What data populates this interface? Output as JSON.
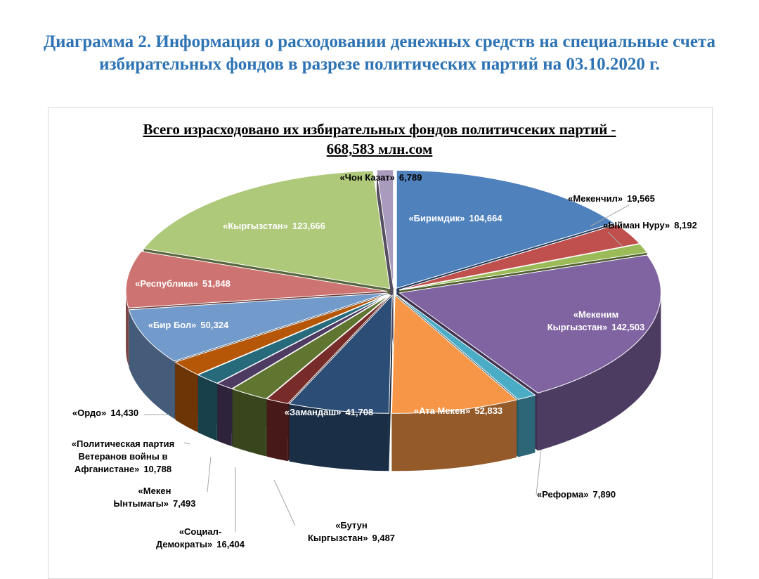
{
  "title": "Диаграмма 2. Информация о расходовании денежных средств на специальные счета избирательных фондов в разрезе политических партий на 03.10.2020 г.",
  "chart_data": {
    "type": "pie3d",
    "title": "Всего израсходовано их избирательных фондов политичсеких партий  -  668,583 млн.сом",
    "categories": [
      "«Биримдик»",
      "«Мекенчил»",
      "«Ыйман Нуру»",
      "«Мекеним Кыргызстан»",
      "«Реформа»",
      "«Ата Мекен»",
      "«Замандаш»",
      "«Бутун Кыргызстан»",
      "«Социал-Демократы»",
      "«Мекен Ынтымагы»",
      "«Политическая партия Ветеранов войны в Афганистане»",
      "«Ордо»",
      "«Бир Бол»",
      "«Республика»",
      "«Кыргызстан»",
      "«Чон Казат»"
    ],
    "values": [
      104.664,
      19.565,
      8.192,
      142.503,
      7.89,
      52.833,
      41.708,
      9.487,
      16.404,
      7.493,
      10.788,
      14.43,
      50.324,
      51.848,
      123.666,
      6.789
    ],
    "value_labels": [
      "104,664",
      "19,565",
      "8,192",
      "142,503",
      "7,890",
      "52,833",
      "41,708",
      "9,487",
      "16,404",
      "7,493",
      "10,788",
      "14,430",
      "50,324",
      "51,848",
      "123,666",
      "6,789"
    ],
    "colors": [
      "#4f81bd",
      "#c0504d",
      "#9bbb59",
      "#8064a2",
      "#4bacc6",
      "#f79646",
      "#2c4d75",
      "#772c2a",
      "#5f7530",
      "#4d3b62",
      "#276a7c",
      "#b65708",
      "#729aca",
      "#cd7371",
      "#afc97a",
      "#a99bbd"
    ]
  }
}
